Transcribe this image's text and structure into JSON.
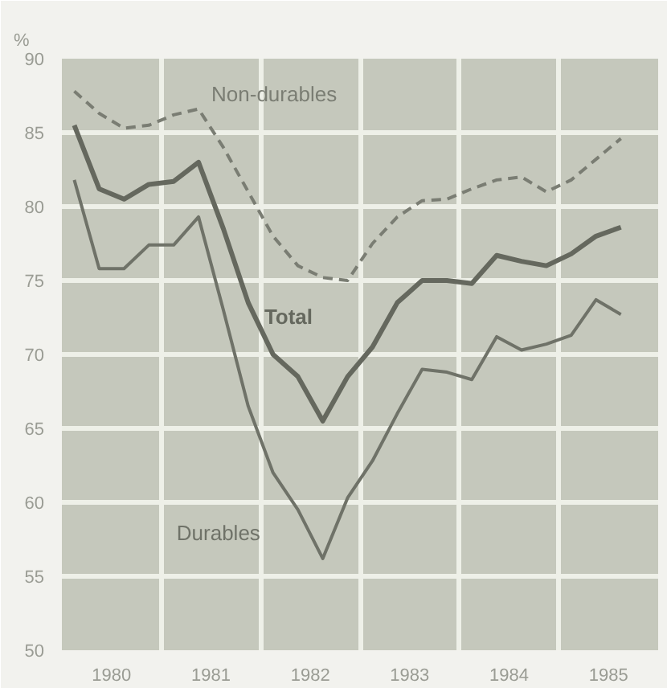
{
  "chart_data": {
    "type": "line",
    "ylabel": "%",
    "x": [
      1980.125,
      1980.375,
      1980.625,
      1980.875,
      1981.125,
      1981.375,
      1981.625,
      1981.875,
      1982.125,
      1982.375,
      1982.625,
      1982.875,
      1983.125,
      1983.375,
      1983.625,
      1983.875,
      1984.125,
      1984.375,
      1984.625,
      1984.875,
      1985.125,
      1985.375,
      1985.625
    ],
    "series": [
      {
        "name": "Non-durables",
        "color": "#7a7d73",
        "line_style": "dashed",
        "values": [
          87.8,
          86.3,
          85.3,
          85.5,
          86.2,
          86.6,
          84,
          81,
          78,
          76,
          75.2,
          75,
          77.5,
          79.3,
          80.4,
          80.5,
          81.2,
          81.8,
          82,
          81,
          81.8,
          83.2,
          84.6
        ]
      },
      {
        "name": "Total",
        "color": "#65685e",
        "line_style": "solid",
        "values": [
          85.5,
          81.2,
          80.5,
          81.5,
          81.7,
          83.0,
          78.5,
          73.5,
          70,
          68.5,
          65.5,
          68.5,
          70.5,
          73.5,
          75,
          75,
          74.8,
          76.7,
          76.3,
          76,
          76.8,
          78,
          78.6
        ]
      },
      {
        "name": "Durables",
        "color": "#6f7268",
        "line_style": "solid",
        "values": [
          81.8,
          75.8,
          75.8,
          77.4,
          77.4,
          79.3,
          73,
          66.5,
          62,
          59.5,
          56.2,
          60.3,
          62.8,
          66,
          69,
          68.8,
          68.3,
          71.2,
          70.3,
          70.7,
          71.3,
          73.7,
          72.7
        ]
      }
    ],
    "xlim": [
      1980,
      1986
    ],
    "ylim": [
      50,
      90
    ],
    "xticks": [
      {
        "value": 1980.5,
        "label": "1980"
      },
      {
        "value": 1981.5,
        "label": "1981"
      },
      {
        "value": 1982.5,
        "label": "1982"
      },
      {
        "value": 1983.5,
        "label": "1983"
      },
      {
        "value": 1984.5,
        "label": "1984"
      },
      {
        "value": 1985.5,
        "label": "1985"
      },
      {
        "value": 1981,
        "label": null
      },
      {
        "value": 1982,
        "label": null
      },
      {
        "value": 1983,
        "label": null
      },
      {
        "value": 1984,
        "label": null
      },
      {
        "value": 1985,
        "label": null
      }
    ],
    "yticks": [
      50,
      55,
      60,
      65,
      70,
      75,
      80,
      85,
      90
    ],
    "grid": true,
    "marker": "none"
  }
}
